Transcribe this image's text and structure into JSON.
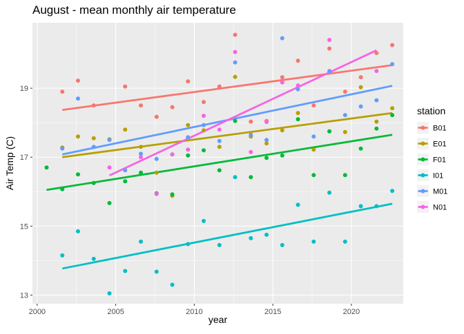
{
  "chart_data": {
    "type": "scatter",
    "title": "August - mean monthly air temperature",
    "xlabel": "year",
    "ylabel": "Air Temp (C)",
    "xlim": [
      1999.7,
      2023.3
    ],
    "ylim": [
      12.75,
      20.9
    ],
    "x_ticks": [
      2000,
      2005,
      2010,
      2015,
      2020
    ],
    "y_ticks": [
      13,
      15,
      17,
      19
    ],
    "grid": true,
    "legend": {
      "title": "station",
      "position": "right"
    },
    "series": [
      {
        "name": "B01",
        "color": "#F8766D",
        "points": [
          [
            2001.6,
            18.9
          ],
          [
            2002.6,
            19.22
          ],
          [
            2003.6,
            18.5
          ],
          [
            2005.6,
            19.05
          ],
          [
            2006.6,
            18.5
          ],
          [
            2007.6,
            18.17
          ],
          [
            2008.6,
            18.45
          ],
          [
            2009.6,
            19.2
          ],
          [
            2010.6,
            18.6
          ],
          [
            2011.6,
            19.05
          ],
          [
            2012.6,
            20.55
          ],
          [
            2013.6,
            18.03
          ],
          [
            2014.6,
            18.05
          ],
          [
            2015.6,
            19.32
          ],
          [
            2016.6,
            19.8
          ],
          [
            2017.6,
            18.5
          ],
          [
            2018.6,
            20.15
          ],
          [
            2019.6,
            18.9
          ],
          [
            2020.6,
            19.32
          ],
          [
            2021.6,
            20.02
          ],
          [
            2022.6,
            20.25
          ]
        ],
        "trend": [
          [
            2001.6,
            18.37
          ],
          [
            2022.6,
            19.67
          ]
        ]
      },
      {
        "name": "E01",
        "color": "#B79F00",
        "points": [
          [
            2001.6,
            17.28
          ],
          [
            2002.6,
            17.6
          ],
          [
            2003.6,
            17.55
          ],
          [
            2004.6,
            17.52
          ],
          [
            2005.6,
            17.8
          ],
          [
            2006.6,
            17.3
          ],
          [
            2007.6,
            16.55
          ],
          [
            2008.6,
            15.88
          ],
          [
            2009.6,
            17.93
          ],
          [
            2010.6,
            17.78
          ],
          [
            2011.6,
            17.3
          ],
          [
            2012.6,
            19.33
          ],
          [
            2013.6,
            17.6
          ],
          [
            2014.6,
            17.4
          ],
          [
            2015.6,
            17.78
          ],
          [
            2016.6,
            18.28
          ],
          [
            2017.6,
            17.22
          ],
          [
            2018.6,
            17.75
          ],
          [
            2019.6,
            17.73
          ],
          [
            2020.6,
            19.03
          ],
          [
            2021.6,
            18.03
          ],
          [
            2022.6,
            18.42
          ]
        ],
        "trend": [
          [
            2001.6,
            17.0
          ],
          [
            2022.6,
            18.28
          ]
        ]
      },
      {
        "name": "F01",
        "color": "#00BA38",
        "points": [
          [
            2000.6,
            16.7
          ],
          [
            2001.6,
            16.07
          ],
          [
            2002.6,
            16.5
          ],
          [
            2003.6,
            16.25
          ],
          [
            2004.6,
            15.67
          ],
          [
            2005.6,
            16.3
          ],
          [
            2006.6,
            16.55
          ],
          [
            2007.6,
            15.95
          ],
          [
            2008.6,
            15.92
          ],
          [
            2009.6,
            17.05
          ],
          [
            2010.6,
            17.2
          ],
          [
            2011.6,
            16.62
          ],
          [
            2012.6,
            18.05
          ],
          [
            2013.6,
            16.42
          ],
          [
            2014.6,
            16.98
          ],
          [
            2015.6,
            17.05
          ],
          [
            2016.6,
            18.1
          ],
          [
            2017.6,
            16.48
          ],
          [
            2018.6,
            17.75
          ],
          [
            2019.6,
            16.48
          ],
          [
            2020.6,
            17.25
          ],
          [
            2021.6,
            17.83
          ],
          [
            2022.6,
            18.22
          ]
        ],
        "trend": [
          [
            2000.6,
            16.05
          ],
          [
            2022.6,
            17.65
          ]
        ]
      },
      {
        "name": "I01",
        "color": "#00BFC4",
        "points": [
          [
            2001.6,
            14.15
          ],
          [
            2002.6,
            14.85
          ],
          [
            2003.6,
            14.05
          ],
          [
            2004.6,
            13.05
          ],
          [
            2005.6,
            13.7
          ],
          [
            2006.6,
            14.55
          ],
          [
            2007.6,
            13.68
          ],
          [
            2008.6,
            13.3
          ],
          [
            2009.6,
            14.48
          ],
          [
            2010.6,
            15.15
          ],
          [
            2011.6,
            14.45
          ],
          [
            2012.6,
            16.42
          ],
          [
            2013.6,
            14.65
          ],
          [
            2014.6,
            14.75
          ],
          [
            2015.6,
            14.45
          ],
          [
            2016.6,
            15.62
          ],
          [
            2017.6,
            14.55
          ],
          [
            2018.6,
            15.97
          ],
          [
            2019.6,
            14.55
          ],
          [
            2020.6,
            15.58
          ],
          [
            2021.6,
            15.58
          ],
          [
            2022.6,
            16.02
          ]
        ],
        "trend": [
          [
            2001.6,
            13.77
          ],
          [
            2022.6,
            15.65
          ]
        ]
      },
      {
        "name": "M01",
        "color": "#619CFF",
        "points": [
          [
            2001.6,
            17.25
          ],
          [
            2002.6,
            18.7
          ],
          [
            2003.6,
            17.3
          ],
          [
            2004.6,
            17.5
          ],
          [
            2005.6,
            16.62
          ],
          [
            2006.6,
            17.1
          ],
          [
            2007.6,
            16.95
          ],
          [
            2008.6,
            17.08
          ],
          [
            2009.6,
            17.58
          ],
          [
            2010.6,
            17.93
          ],
          [
            2011.6,
            17.47
          ],
          [
            2012.6,
            19.75
          ],
          [
            2013.6,
            17.65
          ],
          [
            2014.6,
            17.5
          ],
          [
            2015.6,
            20.45
          ],
          [
            2016.6,
            18.97
          ],
          [
            2017.6,
            17.6
          ],
          [
            2018.6,
            19.5
          ],
          [
            2019.6,
            18.22
          ],
          [
            2020.6,
            18.47
          ],
          [
            2021.6,
            18.65
          ],
          [
            2022.6,
            19.7
          ]
        ],
        "trend": [
          [
            2001.6,
            17.08
          ],
          [
            2022.6,
            19.07
          ]
        ]
      },
      {
        "name": "N01",
        "color": "#F564E3",
        "points": [
          [
            2004.6,
            16.7
          ],
          [
            2006.6,
            17.0
          ],
          [
            2007.6,
            15.93
          ],
          [
            2008.6,
            17.08
          ],
          [
            2009.6,
            17.22
          ],
          [
            2010.6,
            18.2
          ],
          [
            2011.6,
            17.8
          ],
          [
            2012.6,
            20.05
          ],
          [
            2013.6,
            17.15
          ],
          [
            2014.6,
            18.02
          ],
          [
            2015.6,
            19.17
          ],
          [
            2016.6,
            19.08
          ],
          [
            2018.6,
            20.4
          ],
          [
            2021.6,
            19.5
          ]
        ],
        "trend": [
          [
            2004.6,
            16.47
          ],
          [
            2021.6,
            20.1
          ]
        ]
      }
    ]
  }
}
